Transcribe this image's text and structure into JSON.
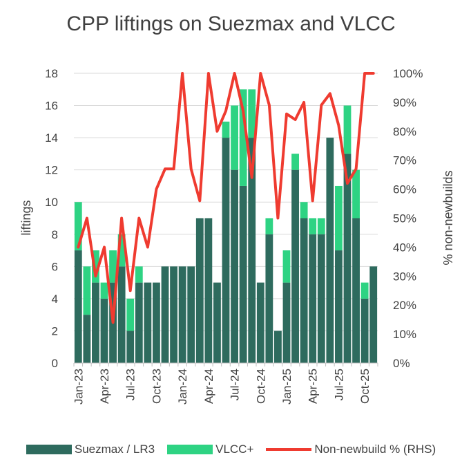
{
  "chart_data": {
    "type": "bar",
    "title": "CPP liftings on Suezmax and VLCC",
    "ylabel": "liftings",
    "y2label": "% non-newbuilds",
    "ylim": [
      0,
      18
    ],
    "yticks": [
      0,
      2,
      4,
      6,
      8,
      10,
      12,
      14,
      16,
      18
    ],
    "y2lim": [
      0,
      100
    ],
    "y2ticks": [
      "0%",
      "10%",
      "20%",
      "30%",
      "40%",
      "50%",
      "60%",
      "70%",
      "80%",
      "90%",
      "100%"
    ],
    "stacked": true,
    "grid": "horizontal",
    "legend_position": "bottom",
    "x_tick_labels": [
      {
        "index": 0,
        "label": "Jan-23"
      },
      {
        "index": 3,
        "label": "Apr-23"
      },
      {
        "index": 6,
        "label": "Jul-23"
      },
      {
        "index": 9,
        "label": "Oct-23"
      },
      {
        "index": 12,
        "label": "Jan-24"
      },
      {
        "index": 15,
        "label": "Apr-24"
      },
      {
        "index": 18,
        "label": "Jul-24"
      },
      {
        "index": 21,
        "label": "Oct-24"
      },
      {
        "index": 24,
        "label": "Jan-25"
      },
      {
        "index": 27,
        "label": "Apr-25"
      },
      {
        "index": 30,
        "label": "Jul-25"
      },
      {
        "index": 33,
        "label": "Oct-25"
      }
    ],
    "categories": [
      "2023-01",
      "2023-02",
      "2023-03",
      "2023-04",
      "2023-05",
      "2023-06",
      "2023-07",
      "2023-08",
      "2023-09",
      "2023-10",
      "2023-11",
      "2023-12",
      "2024-01",
      "2024-02",
      "2024-03",
      "2024-04",
      "2024-05",
      "2024-06",
      "2024-07",
      "2024-08",
      "2024-09",
      "2024-10",
      "2024-11",
      "2024-12",
      "2025-01",
      "2025-02",
      "2025-03",
      "2025-04",
      "2025-05",
      "2025-06",
      "2025-07",
      "2025-08",
      "2025-09",
      "2025-10",
      "2025-11"
    ],
    "series": [
      {
        "name": "Suezmax / LR3",
        "type": "bar",
        "color": "#2e6b5e",
        "values": [
          7,
          3,
          5,
          4,
          5,
          6,
          2,
          5,
          5,
          5,
          6,
          6,
          6,
          6,
          9,
          9,
          5,
          14,
          12,
          11,
          14,
          5,
          8,
          2,
          5,
          12,
          9,
          8,
          8,
          14,
          7,
          13,
          9,
          4,
          6
        ]
      },
      {
        "name": "VLCC+",
        "type": "bar",
        "color": "#2ed383",
        "values": [
          3,
          3,
          2,
          1,
          2,
          2,
          2,
          1,
          0,
          0,
          0,
          0,
          0,
          0,
          0,
          0,
          0,
          1,
          4,
          6,
          3,
          0,
          1,
          0,
          2,
          1,
          1,
          1,
          1,
          0,
          4,
          3,
          3,
          1,
          0
        ]
      },
      {
        "name": "Non-newbuild % (RHS)",
        "type": "line",
        "axis": "right",
        "color": "#ef3b30",
        "values": [
          40,
          50,
          30,
          40,
          14,
          50,
          25,
          50,
          40,
          60,
          67,
          67,
          100,
          67,
          56,
          100,
          80,
          87,
          100,
          87,
          64,
          100,
          89,
          50,
          86,
          84,
          90,
          56,
          89,
          93,
          82,
          62,
          67,
          100,
          100
        ]
      }
    ]
  }
}
